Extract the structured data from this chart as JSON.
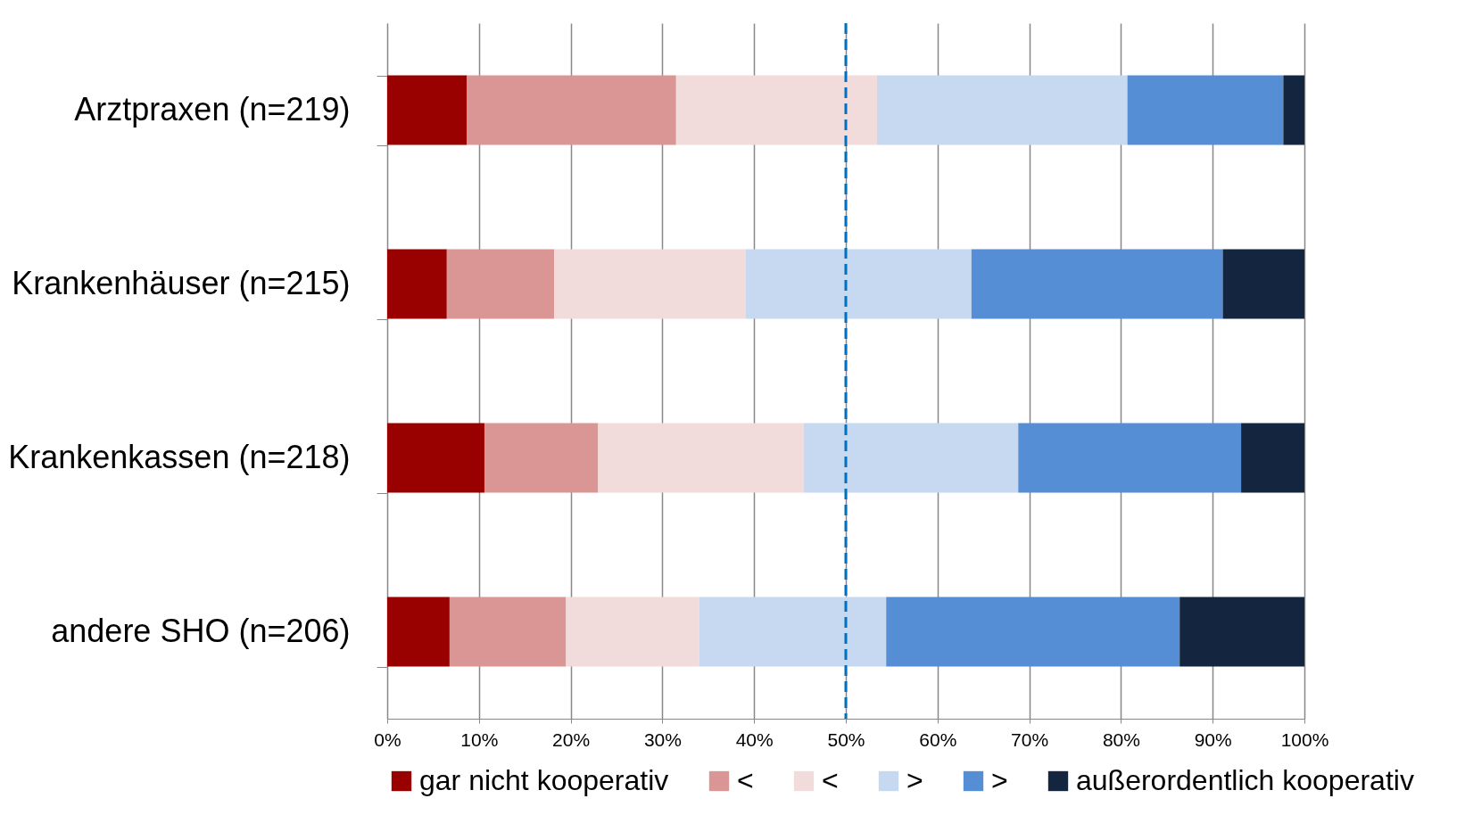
{
  "chart_data": {
    "type": "bar",
    "orientation": "horizontal",
    "stacked": true,
    "categories": [
      "Arztpraxen (n=219)",
      "Krankenhäuser (n=215)",
      "Krankenkassen (n=218)",
      "andere SHO (n=206)"
    ],
    "series": [
      {
        "name": "gar nicht kooperativ",
        "color": "#990000",
        "values": [
          8.7,
          6.5,
          10.6,
          6.8
        ]
      },
      {
        "name": "<",
        "color": "#d99694",
        "values": [
          22.8,
          11.7,
          12.4,
          12.7
        ]
      },
      {
        "name": "<",
        "color": "#f2dcdb",
        "values": [
          21.9,
          20.9,
          22.4,
          14.5
        ]
      },
      {
        "name": ">",
        "color": "#c6d9f1",
        "values": [
          27.3,
          24.6,
          23.4,
          20.4
        ]
      },
      {
        "name": ">",
        "color": "#558ed5",
        "values": [
          17.0,
          27.4,
          24.3,
          32.0
        ]
      },
      {
        "name": "außerordentlich kooperativ",
        "color": "#14263f",
        "values": [
          2.3,
          8.9,
          6.9,
          13.6
        ]
      }
    ],
    "xlim": [
      0,
      100
    ],
    "xticks": [
      {
        "value": 0,
        "label": "0%"
      },
      {
        "value": 10,
        "label": "10%"
      },
      {
        "value": 20,
        "label": "20%"
      },
      {
        "value": 30,
        "label": "30%"
      },
      {
        "value": 40,
        "label": "40%"
      },
      {
        "value": 50,
        "label": "50%"
      },
      {
        "value": 60,
        "label": "60%"
      },
      {
        "value": 70,
        "label": "70%"
      },
      {
        "value": 80,
        "label": "80%"
      },
      {
        "value": 90,
        "label": "90%"
      },
      {
        "value": 100,
        "label": "100%"
      }
    ],
    "grid": "x",
    "legend": "bottom",
    "ref_lines": [
      {
        "axis": "x",
        "value": 50,
        "color": "#0070c0",
        "line_style": "dashed"
      }
    ]
  }
}
